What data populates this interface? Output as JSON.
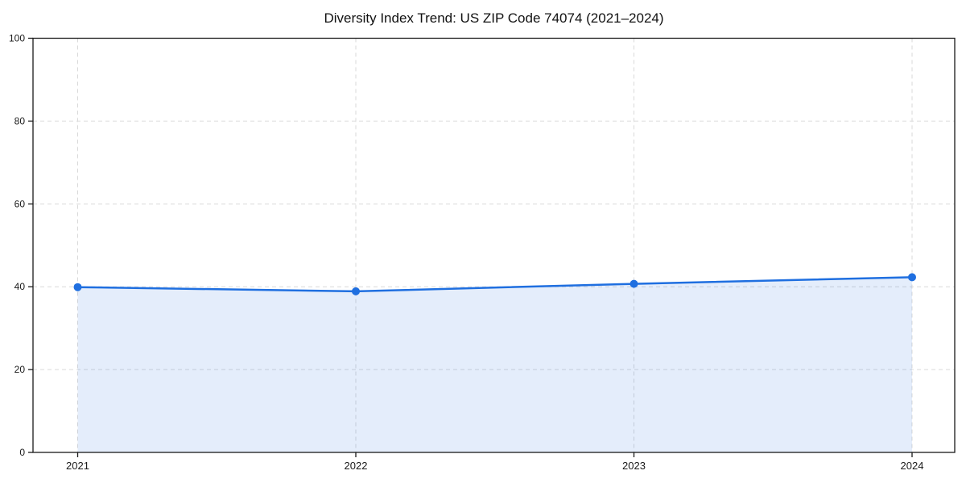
{
  "page": {
    "background_color": "#ffffff"
  },
  "chart_data": {
    "type": "area",
    "title": "Diversity Index Trend: US ZIP Code 74074 (2021–2024)",
    "categories": [
      "2021",
      "2022",
      "2023",
      "2024"
    ],
    "x": [
      2021,
      2022,
      2023,
      2024
    ],
    "series": [
      {
        "name": "Diversity Index",
        "values": [
          39.9,
          38.9,
          40.7,
          42.3
        ]
      }
    ],
    "xlabel": "",
    "ylabel": "",
    "ylim": [
      0,
      100
    ],
    "yticks": [
      0,
      20,
      40,
      60,
      80,
      100
    ],
    "grid": true,
    "grid_style": "dashed",
    "legend": false,
    "marker": "circle",
    "colors": {
      "line": "#1f6fe0",
      "marker": "#1f6fe0",
      "area_fill": "rgba(31,111,224,0.12)",
      "gridline": "#d9d9d9",
      "axis": "#1a1a1a",
      "tick_text": "#1a1a1a",
      "title_text": "#111111",
      "background": "#ffffff"
    }
  }
}
